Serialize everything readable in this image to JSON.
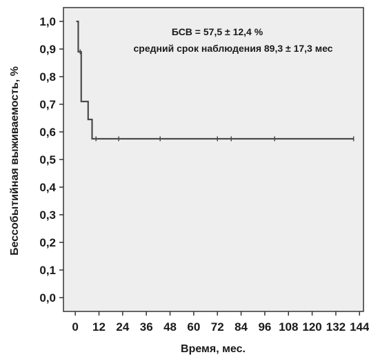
{
  "chart_data": {
    "type": "line",
    "title": "",
    "xlabel": "Время, мес.",
    "ylabel": "Бессобытийная выживаемость, %",
    "xlim": [
      -6,
      146
    ],
    "ylim": [
      -0.05,
      1.05
    ],
    "x_ticks": [
      0,
      12,
      24,
      36,
      48,
      60,
      72,
      84,
      96,
      108,
      120,
      132,
      144
    ],
    "x_tick_labels": [
      "0",
      "12",
      "24",
      "36",
      "48",
      "60",
      "72",
      "84",
      "96",
      "108",
      "120",
      "132",
      "144"
    ],
    "y_ticks": [
      0.0,
      0.1,
      0.2,
      0.3,
      0.4,
      0.5,
      0.6,
      0.7,
      0.8,
      0.9,
      1.0
    ],
    "y_tick_labels": [
      "0,0",
      "0,1",
      "0,2",
      "0,3",
      "0,4",
      "0,5",
      "0,6",
      "0,7",
      "0,8",
      "0,9",
      "1,0"
    ],
    "grid": false,
    "annotations": [
      "БСВ = 57,5 ± 12,4 %",
      "средний срок наблюдения 89,3 ± 17,3 мес"
    ],
    "series": [
      {
        "line_color": "#4a4a4a",
        "steps": [
          {
            "x": 0.5,
            "y": 1.0
          },
          {
            "x": 1.5,
            "y": 0.89
          },
          {
            "x": 3.0,
            "y": 0.71
          },
          {
            "x": 6.5,
            "y": 0.645
          },
          {
            "x": 8.5,
            "y": 0.575
          },
          {
            "x": 141,
            "y": 0.575
          }
        ],
        "censored": [
          {
            "x": 2.5,
            "y": 0.89
          },
          {
            "x": 10.5,
            "y": 0.575
          },
          {
            "x": 22,
            "y": 0.575
          },
          {
            "x": 43,
            "y": 0.575
          },
          {
            "x": 72,
            "y": 0.575
          },
          {
            "x": 79,
            "y": 0.575
          },
          {
            "x": 101,
            "y": 0.575
          },
          {
            "x": 141,
            "y": 0.575
          }
        ]
      }
    ]
  },
  "colors": {
    "plot_background": "#eeeeee",
    "axis": "#333333"
  }
}
